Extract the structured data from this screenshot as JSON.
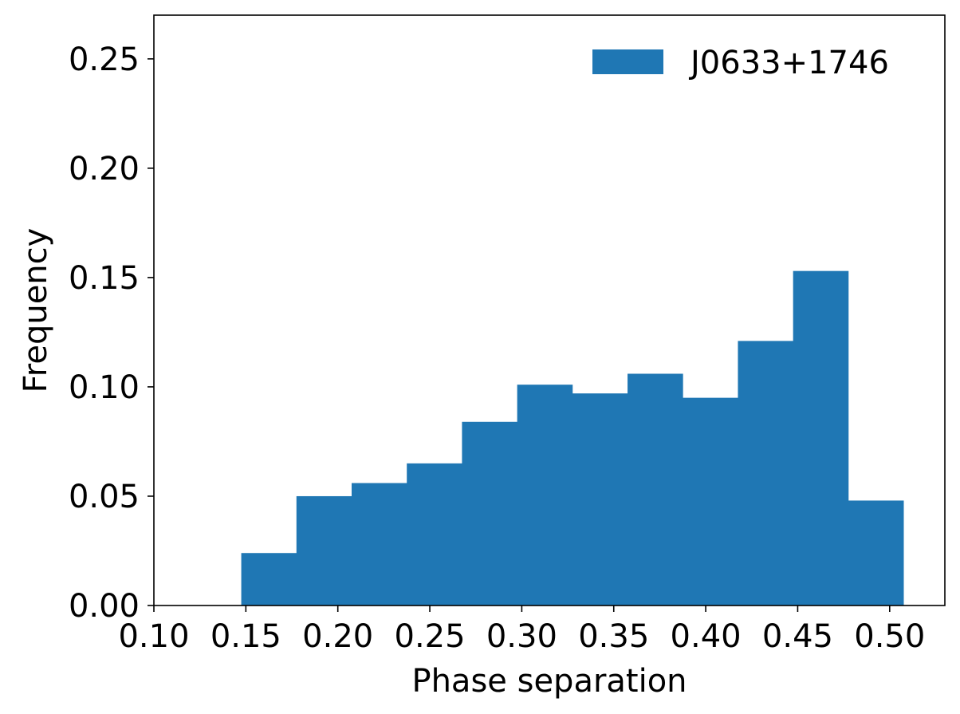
{
  "chart_data": {
    "type": "bar",
    "title": "",
    "xlabel": "Phase separation",
    "ylabel": "Frequency",
    "xlim": [
      0.1,
      0.53
    ],
    "ylim": [
      0.0,
      0.27
    ],
    "xticks": [
      0.1,
      0.15,
      0.2,
      0.25,
      0.3,
      0.35,
      0.4,
      0.45,
      0.5
    ],
    "xtick_labels": [
      "0.10",
      "0.15",
      "0.20",
      "0.25",
      "0.30",
      "0.35",
      "0.40",
      "0.45",
      "0.50"
    ],
    "yticks": [
      0.0,
      0.05,
      0.1,
      0.15,
      0.2,
      0.25
    ],
    "ytick_labels": [
      "0.00",
      "0.05",
      "0.10",
      "0.15",
      "0.20",
      "0.25"
    ],
    "grid": false,
    "legend": {
      "placement": "top-right",
      "entries": [
        "J0633+1746"
      ]
    },
    "series": [
      {
        "name": "J0633+1746",
        "color": "#1f77b4",
        "bin_edges": [
          0.1475,
          0.1775,
          0.2075,
          0.2375,
          0.2675,
          0.2975,
          0.3275,
          0.3575,
          0.3875,
          0.4175,
          0.4475,
          0.4775,
          0.5075
        ],
        "values": [
          0.024,
          0.05,
          0.056,
          0.065,
          0.084,
          0.101,
          0.097,
          0.106,
          0.095,
          0.121,
          0.153,
          0.048
        ]
      }
    ]
  }
}
